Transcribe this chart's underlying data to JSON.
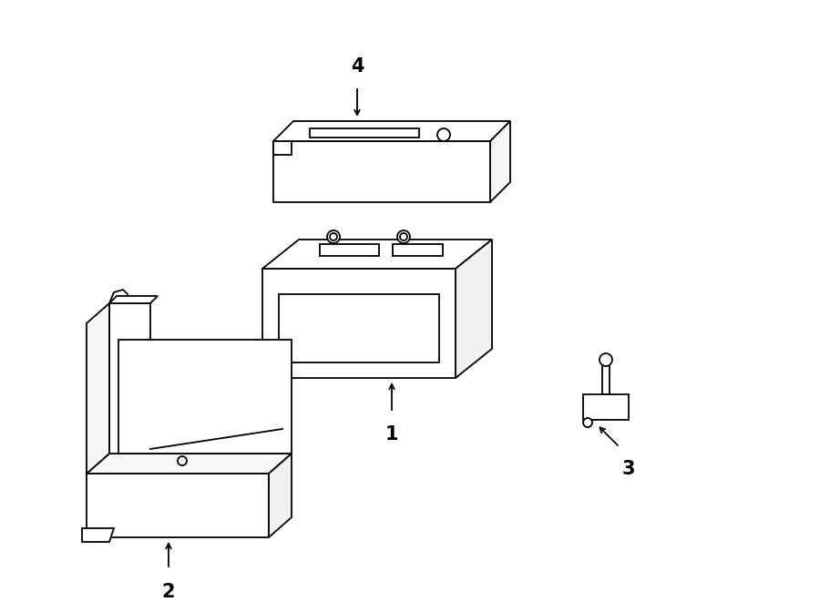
{
  "background_color": "#ffffff",
  "line_color": "#000000",
  "lw": 1.3,
  "parts": {
    "part4_label": "4",
    "part1_label": "1",
    "part2_label": "2",
    "part3_label": "3"
  },
  "figsize": [
    9.0,
    6.61
  ],
  "dpi": 100
}
